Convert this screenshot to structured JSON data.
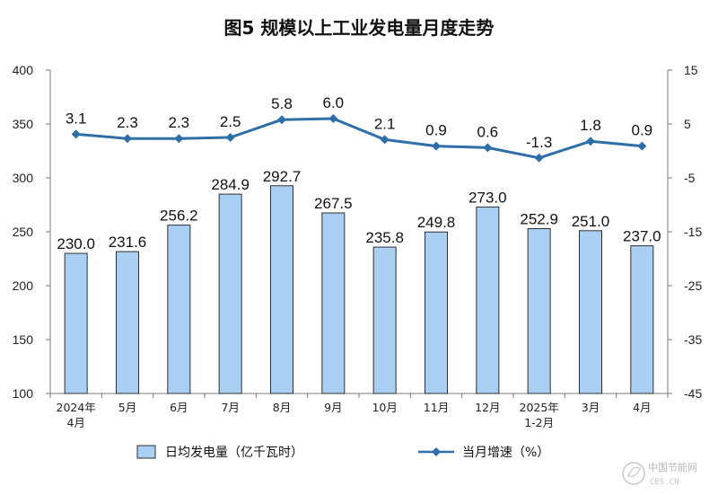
{
  "chart_data": {
    "type": "bar",
    "title": "图5  规模以上工业发电量月度走势",
    "categories": [
      [
        "2024年",
        "4月"
      ],
      [
        "5月"
      ],
      [
        "6月"
      ],
      [
        "7月"
      ],
      [
        "8月"
      ],
      [
        "9月"
      ],
      [
        "10月"
      ],
      [
        "11月"
      ],
      [
        "12月"
      ],
      [
        "2025年",
        "1-2月"
      ],
      [
        "3月"
      ],
      [
        "4月"
      ]
    ],
    "series": [
      {
        "name": "日均发电量（亿千瓦时）",
        "type": "bar",
        "axis": "left",
        "values": [
          230.0,
          231.6,
          256.2,
          284.9,
          292.7,
          267.5,
          235.8,
          249.8,
          273.0,
          252.9,
          251.0,
          237.0
        ],
        "labels": [
          "230.0",
          "231.6",
          "256.2",
          "284.9",
          "292.7",
          "267.5",
          "235.8",
          "249.8",
          "273.0",
          "252.9",
          "251.0",
          "237.0"
        ],
        "color": "#a9cff3"
      },
      {
        "name": "当月增速（%）",
        "type": "line",
        "axis": "right",
        "values": [
          3.1,
          2.3,
          2.3,
          2.5,
          5.8,
          6.0,
          2.1,
          0.9,
          0.6,
          -1.3,
          1.8,
          0.9
        ],
        "labels": [
          "3.1",
          "2.3",
          "2.3",
          "2.5",
          "5.8",
          "6.0",
          "2.1",
          "0.9",
          "0.6",
          "-1.3",
          "1.8",
          "0.9"
        ],
        "color": "#2e6fa8"
      }
    ],
    "y_left": {
      "min": 100,
      "max": 400,
      "ticks": [
        100,
        150,
        200,
        250,
        300,
        350,
        400
      ]
    },
    "y_right": {
      "min": -45,
      "max": 15,
      "ticks": [
        15,
        5,
        -5,
        -15,
        -25,
        -35,
        -45
      ]
    },
    "grid": false,
    "legend_position": "bottom"
  },
  "watermark": {
    "text_cn": "中国节能网",
    "text_en": "CES.CN"
  }
}
